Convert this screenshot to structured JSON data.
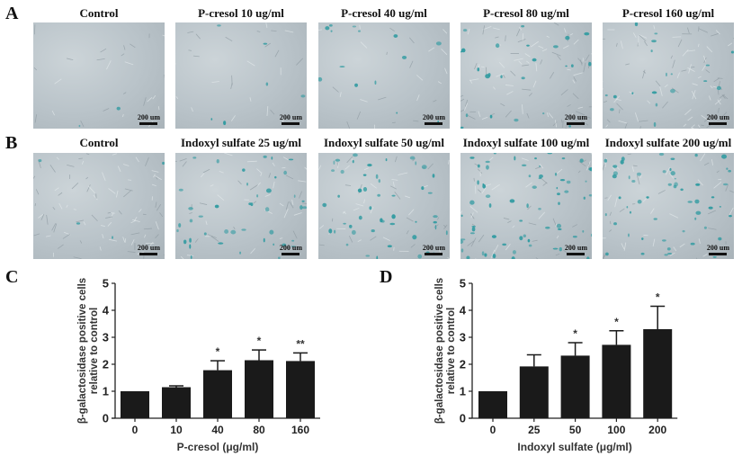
{
  "panels": {
    "A": {
      "letter": "A",
      "images": [
        {
          "title": "Control",
          "scale": "200 um",
          "stain_density": 0.02,
          "texture": "smooth"
        },
        {
          "title": "P-cresol 10 ug/ml",
          "scale": "200 um",
          "stain_density": 0.05,
          "texture": "smooth"
        },
        {
          "title": "P-cresol 40 ug/ml",
          "scale": "200 um",
          "stain_density": 0.12,
          "texture": "light"
        },
        {
          "title": "P-cresol 80 ug/ml",
          "scale": "200 um",
          "stain_density": 0.2,
          "texture": "fibrous"
        },
        {
          "title": "P-cresol 160 ug/ml",
          "scale": "200 um",
          "stain_density": 0.15,
          "texture": "fibrous"
        }
      ]
    },
    "B": {
      "letter": "B",
      "images": [
        {
          "title": "Control",
          "scale": "200 um",
          "stain_density": 0.03,
          "texture": "fibrous"
        },
        {
          "title": "Indoxyl sulfate 25 ug/ml",
          "scale": "200 um",
          "stain_density": 0.35,
          "texture": "spotted"
        },
        {
          "title": "Indoxyl sulfate 50 ug/ml",
          "scale": "200 um",
          "stain_density": 0.4,
          "texture": "spotted"
        },
        {
          "title": "Indoxyl sulfate 100 ug/ml",
          "scale": "200 um",
          "stain_density": 0.55,
          "texture": "spotted"
        },
        {
          "title": "Indoxyl sulfate 200 ug/ml",
          "scale": "200 um",
          "stain_density": 0.45,
          "texture": "spotted"
        }
      ]
    },
    "C": {
      "letter": "C"
    },
    "D": {
      "letter": "D"
    }
  },
  "colors": {
    "bar": "#1a1a1a",
    "axis": "#222222",
    "micro_bg": "#b9c3c9",
    "stain": "#2e9aa0"
  },
  "chart_data": [
    {
      "type": "bar",
      "panel": "C",
      "title": "",
      "categories": [
        "0",
        "10",
        "40",
        "80",
        "160"
      ],
      "values": [
        1.0,
        1.15,
        1.78,
        2.15,
        2.12
      ],
      "error_upper": [
        1.0,
        1.2,
        2.13,
        2.53,
        2.42
      ],
      "significance": [
        "",
        "",
        "*",
        "*",
        "**"
      ],
      "xlabel": "P-cresol (μg/ml)",
      "ylabel_line1": "β-galactosidase positive cells",
      "ylabel_line2": "relative to control",
      "ylim": [
        0,
        5
      ],
      "yticks": [
        "0",
        "1",
        "2",
        "3",
        "4",
        "5"
      ],
      "grid": false
    },
    {
      "type": "bar",
      "panel": "D",
      "title": "",
      "categories": [
        "0",
        "25",
        "50",
        "100",
        "200"
      ],
      "values": [
        1.0,
        1.92,
        2.32,
        2.72,
        3.3
      ],
      "error_upper": [
        1.0,
        2.35,
        2.8,
        3.24,
        4.15
      ],
      "significance": [
        "",
        "",
        "*",
        "*",
        "*"
      ],
      "xlabel": "Indoxyl sulfate (μg/ml)",
      "ylabel_line1": "β-galactosidase positive cells",
      "ylabel_line2": "relative to control",
      "ylim": [
        0,
        5
      ],
      "yticks": [
        "0",
        "1",
        "2",
        "3",
        "4",
        "5"
      ],
      "grid": false
    }
  ]
}
